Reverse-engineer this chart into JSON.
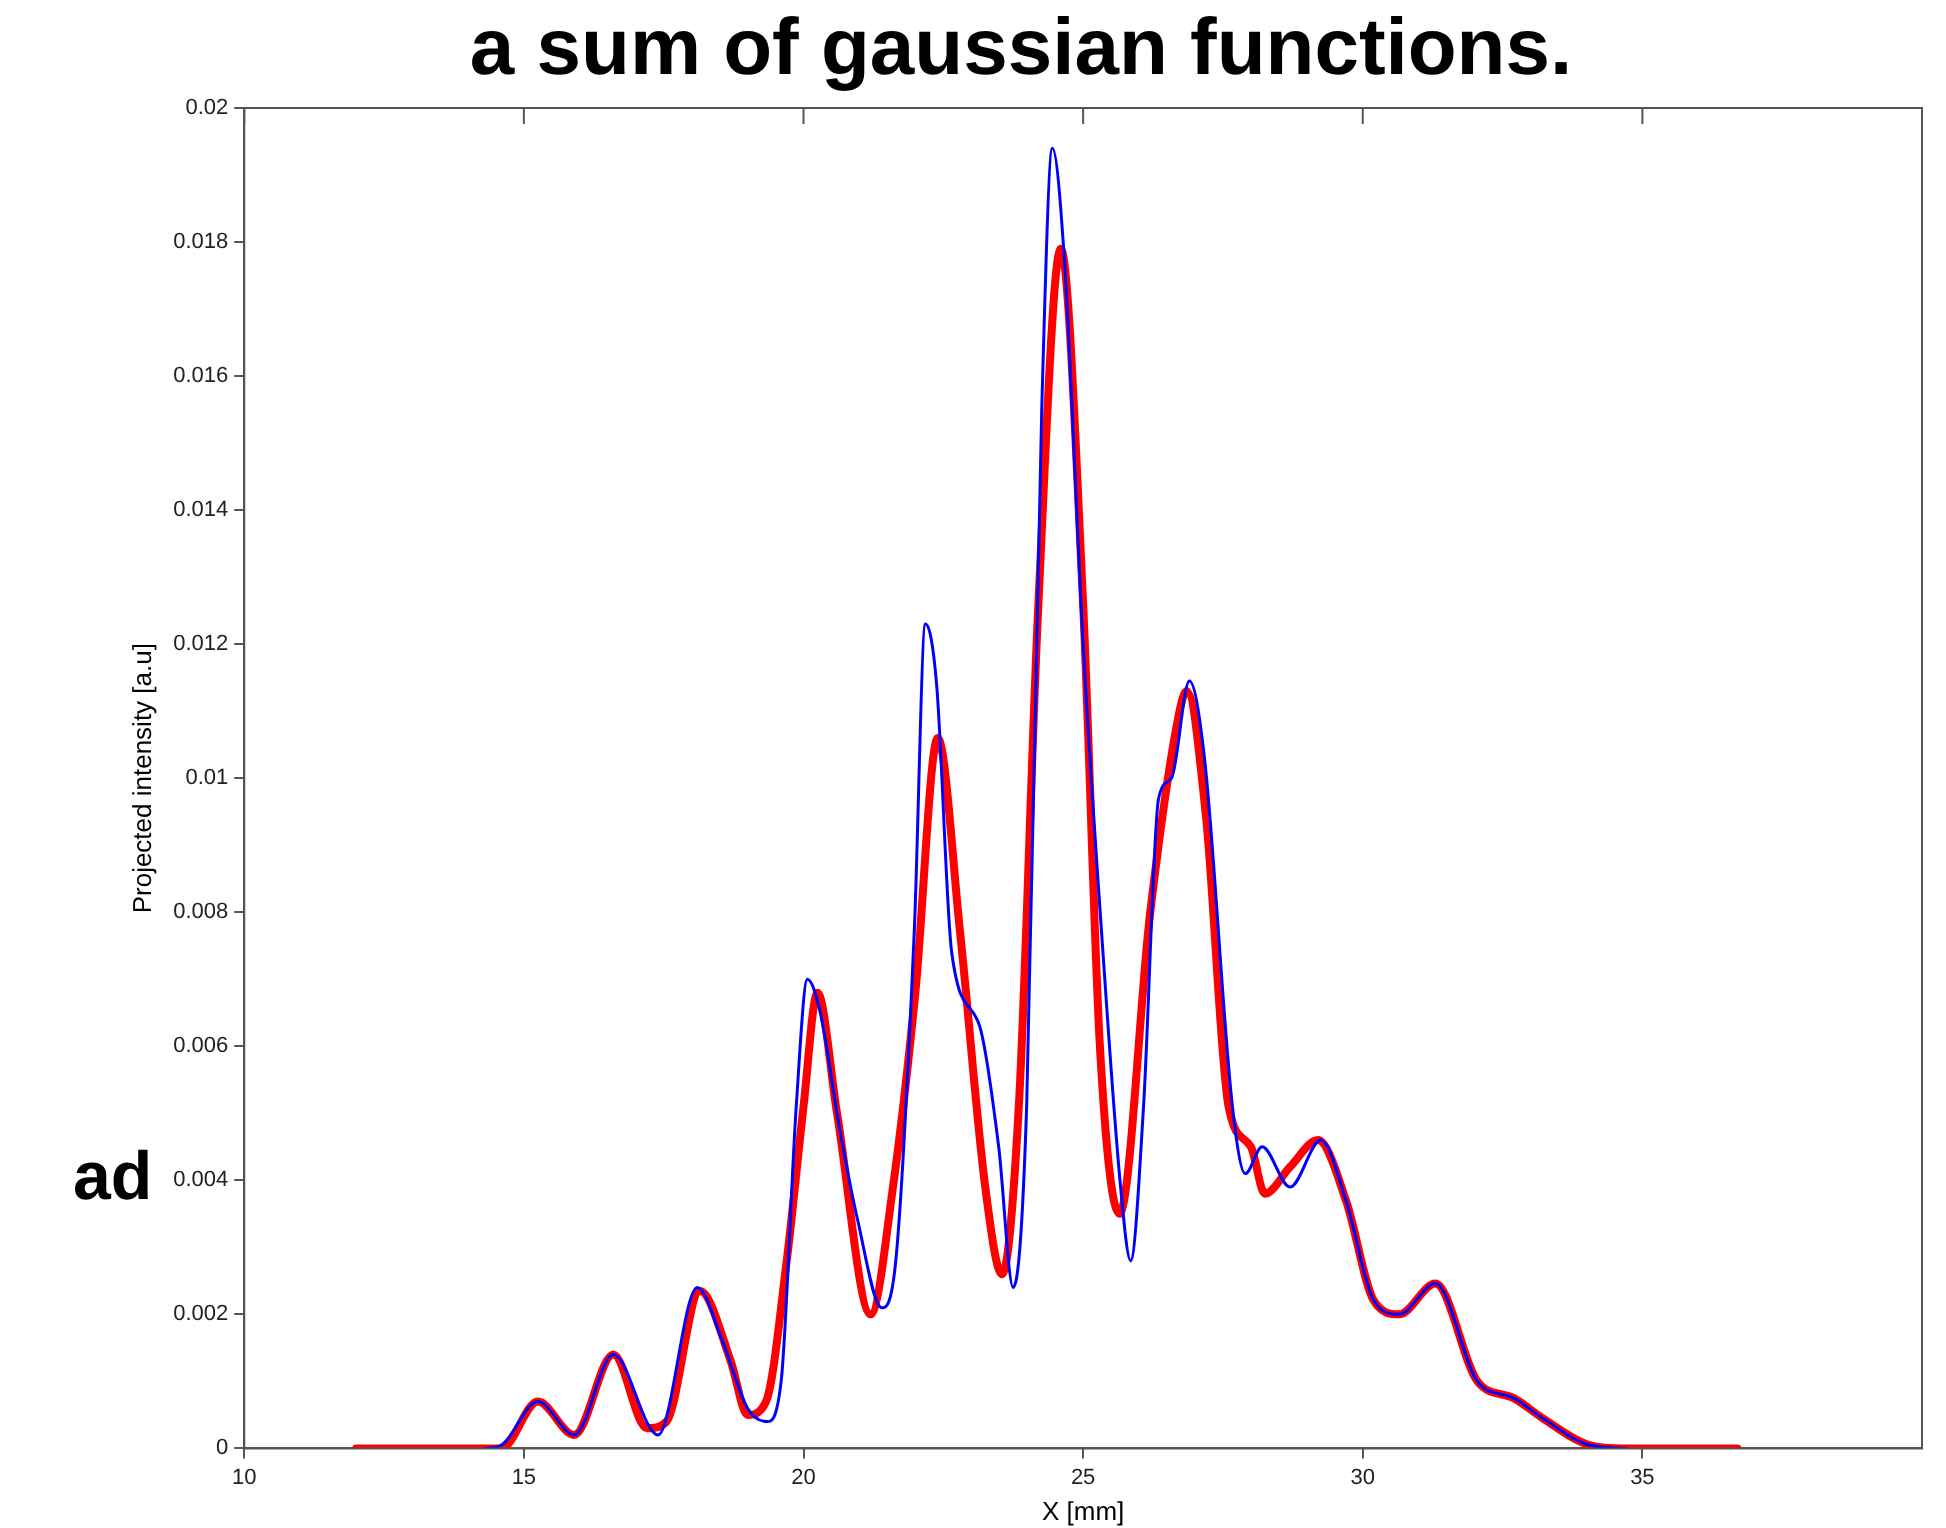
{
  "chart_data": {
    "type": "line",
    "title": "a sum of gaussian functions.",
    "xlabel": "X [mm]",
    "ylabel": "Projected intensity [a.u]",
    "annotations": [
      "ad"
    ],
    "xlim": [
      10,
      40
    ],
    "xticks": [
      10,
      15,
      20,
      25,
      30,
      35
    ],
    "ylim": [
      0,
      0.02
    ],
    "yticks": [
      0,
      0.002,
      0.004,
      0.006,
      0.008,
      0.01,
      0.012,
      0.014,
      0.016,
      0.018,
      0.02
    ],
    "grid": false,
    "legend": false,
    "marker": "none",
    "line_style": "solid",
    "series": [
      {
        "color": "#0000ff",
        "x": [
          14.3,
          14.6,
          15.25,
          15.9,
          16.6,
          17.4,
          18.1,
          18.55,
          19.0,
          19.35,
          19.6,
          19.87,
          20.07,
          20.3,
          20.64,
          20.97,
          21.4,
          21.65,
          21.98,
          22.18,
          22.38,
          22.65,
          23.15,
          23.49,
          23.75,
          23.99,
          24.26,
          24.45,
          24.66,
          25.0,
          25.33,
          25.67,
          25.85,
          26.08,
          26.35,
          26.58,
          26.9,
          27.17,
          27.67,
          27.9,
          28.2,
          28.7,
          29.25,
          29.7,
          30.2,
          30.65,
          31.3,
          32.05,
          32.7,
          33.2,
          34.05,
          34.7
        ],
        "values": [
          0,
          5e-05,
          0.0007,
          0.0002,
          0.0014,
          0.0002,
          0.0024,
          0.0016,
          0.0006,
          0.0004,
          0.001,
          0.0051,
          0.007,
          0.0065,
          0.0048,
          0.0034,
          0.0021,
          0.0028,
          0.0077,
          0.0123,
          0.0114,
          0.0074,
          0.0063,
          0.0045,
          0.0024,
          0.0051,
          0.0155,
          0.0194,
          0.0178,
          0.012,
          0.0077,
          0.0039,
          0.0028,
          0.0051,
          0.0097,
          0.01,
          0.01145,
          0.0103,
          0.0051,
          0.0041,
          0.0045,
          0.0039,
          0.0046,
          0.0037,
          0.0022,
          0.002,
          0.00246,
          0.001,
          0.00075,
          0.00046,
          5e-05,
          0
        ]
      },
      {
        "color": "#ff0000",
        "x": [
          12.0,
          14.6,
          15.25,
          15.9,
          16.6,
          17.2,
          17.55,
          18.15,
          18.7,
          19.0,
          19.33,
          19.7,
          20.0,
          20.25,
          20.6,
          21.2,
          21.6,
          22.0,
          22.4,
          22.8,
          23.25,
          23.55,
          23.85,
          24.2,
          24.6,
          25.0,
          25.3,
          25.65,
          26.2,
          26.7,
          26.85,
          27.2,
          27.6,
          28.0,
          28.25,
          28.7,
          29.2,
          29.7,
          30.2,
          30.65,
          31.3,
          32.05,
          32.7,
          33.2,
          34.05,
          34.7,
          36.7
        ],
        "values": [
          0,
          0,
          0.0007,
          0.0002,
          0.0014,
          0.0003,
          0.0004,
          0.00235,
          0.0013,
          0.0005,
          0.0007,
          0.0028,
          0.0051,
          0.0068,
          0.005,
          0.002,
          0.0039,
          0.0068,
          0.0106,
          0.0077,
          0.0039,
          0.0026,
          0.0051,
          0.0126,
          0.0179,
          0.0126,
          0.006,
          0.0035,
          0.008,
          0.0109,
          0.0113,
          0.0094,
          0.0051,
          0.0045,
          0.0038,
          0.0042,
          0.0046,
          0.0037,
          0.0022,
          0.002,
          0.00246,
          0.001,
          0.00075,
          0.00046,
          5e-05,
          0,
          0
        ]
      }
    ]
  }
}
